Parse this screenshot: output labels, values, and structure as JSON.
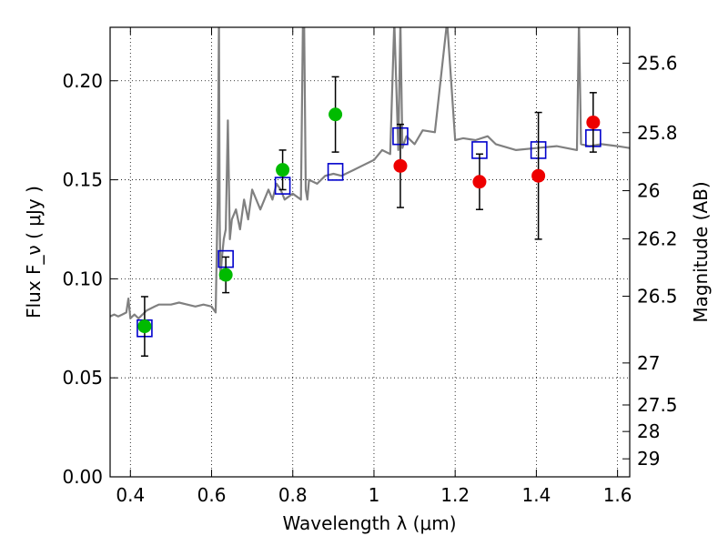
{
  "chart_data": {
    "type": "scatter",
    "xlabel": "Wavelength  λ (μm)",
    "ylabel": "Flux  F_ν  ( μJy )",
    "ylabel_right": "Magnitude (AB)",
    "xlim": [
      0.35,
      1.63
    ],
    "ylim": [
      0.0,
      0.227
    ],
    "grid": true,
    "grid_style": "dotted",
    "x_ticks": [
      0.4,
      0.6,
      0.8,
      1.0,
      1.2,
      1.4,
      1.6
    ],
    "x_tick_labels": [
      "0.4",
      "0.6",
      "0.8",
      "1",
      "1.2",
      "1.4",
      "1.6"
    ],
    "y_ticks": [
      0.0,
      0.05,
      0.1,
      0.15,
      0.2
    ],
    "y_tick_labels": [
      "0.00",
      "0.05",
      "0.10",
      "0.15",
      "0.20"
    ],
    "right_ticks": [
      {
        "flux": 0.2089,
        "label": "25.6"
      },
      {
        "flux": 0.1738,
        "label": "25.8"
      },
      {
        "flux": 0.1445,
        "label": "26"
      },
      {
        "flux": 0.1202,
        "label": "26.2"
      },
      {
        "flux": 0.0912,
        "label": "26.5"
      },
      {
        "flux": 0.0575,
        "label": "27"
      },
      {
        "flux": 0.0363,
        "label": "27.5"
      },
      {
        "flux": 0.0229,
        "label": "28"
      },
      {
        "flux": 0.0091,
        "label": "29"
      }
    ],
    "colors": {
      "model": "#808080",
      "model_photometry": "#0000cc",
      "observed_green": "#00bb00",
      "observed_red": "#ee0000",
      "errorbar": "#000000",
      "grid": "#000000"
    },
    "series": [
      {
        "type": "line",
        "color": "#808080",
        "x": [
          0.35,
          0.36,
          0.37,
          0.38,
          0.39,
          0.395,
          0.4,
          0.405,
          0.41,
          0.42,
          0.43,
          0.44,
          0.45,
          0.46,
          0.47,
          0.48,
          0.5,
          0.52,
          0.54,
          0.56,
          0.58,
          0.6,
          0.61,
          0.615,
          0.618,
          0.62,
          0.622,
          0.625,
          0.63,
          0.635,
          0.64,
          0.645,
          0.65,
          0.66,
          0.67,
          0.68,
          0.69,
          0.7,
          0.72,
          0.74,
          0.75,
          0.76,
          0.77,
          0.78,
          0.8,
          0.82,
          0.825,
          0.828,
          0.832,
          0.836,
          0.84,
          0.86,
          0.88,
          0.9,
          0.92,
          0.95,
          0.97,
          1.0,
          1.02,
          1.04,
          1.05,
          1.06,
          1.065,
          1.07,
          1.08,
          1.1,
          1.12,
          1.15,
          1.18,
          1.2,
          1.22,
          1.25,
          1.28,
          1.3,
          1.35,
          1.4,
          1.45,
          1.5,
          1.505,
          1.51,
          1.53,
          1.56,
          1.6,
          1.63
        ],
        "y": [
          0.081,
          0.082,
          0.081,
          0.082,
          0.083,
          0.09,
          0.08,
          0.081,
          0.082,
          0.08,
          0.082,
          0.084,
          0.085,
          0.086,
          0.087,
          0.087,
          0.087,
          0.088,
          0.087,
          0.086,
          0.087,
          0.086,
          0.083,
          0.14,
          0.23,
          0.13,
          0.1,
          0.11,
          0.12,
          0.125,
          0.18,
          0.12,
          0.13,
          0.135,
          0.125,
          0.14,
          0.13,
          0.145,
          0.135,
          0.145,
          0.14,
          0.148,
          0.145,
          0.14,
          0.143,
          0.14,
          0.23,
          0.23,
          0.145,
          0.14,
          0.15,
          0.148,
          0.152,
          0.153,
          0.152,
          0.155,
          0.157,
          0.16,
          0.165,
          0.163,
          0.23,
          0.165,
          0.23,
          0.166,
          0.172,
          0.168,
          0.175,
          0.174,
          0.23,
          0.17,
          0.171,
          0.17,
          0.172,
          0.168,
          0.165,
          0.166,
          0.167,
          0.165,
          0.23,
          0.168,
          0.167,
          0.168,
          0.167,
          0.166
        ]
      },
      {
        "type": "scatter",
        "marker": "open-square",
        "color": "#0000cc",
        "x": [
          0.435,
          0.635,
          0.775,
          0.905,
          1.065,
          1.26,
          1.405,
          1.54
        ],
        "y": [
          0.075,
          0.11,
          0.147,
          0.154,
          0.172,
          0.165,
          0.165,
          0.171
        ]
      },
      {
        "type": "scatter",
        "marker": "filled-circle",
        "color": "#00bb00",
        "x": [
          0.435,
          0.635,
          0.775,
          0.905
        ],
        "y": [
          0.076,
          0.102,
          0.155,
          0.183
        ],
        "yerr": [
          0.015,
          0.009,
          0.01,
          0.019
        ]
      },
      {
        "type": "scatter",
        "marker": "filled-circle",
        "color": "#ee0000",
        "x": [
          1.065,
          1.26,
          1.405,
          1.54
        ],
        "y": [
          0.157,
          0.149,
          0.152,
          0.179
        ],
        "yerr": [
          0.021,
          0.014,
          0.032,
          0.015
        ]
      }
    ]
  }
}
